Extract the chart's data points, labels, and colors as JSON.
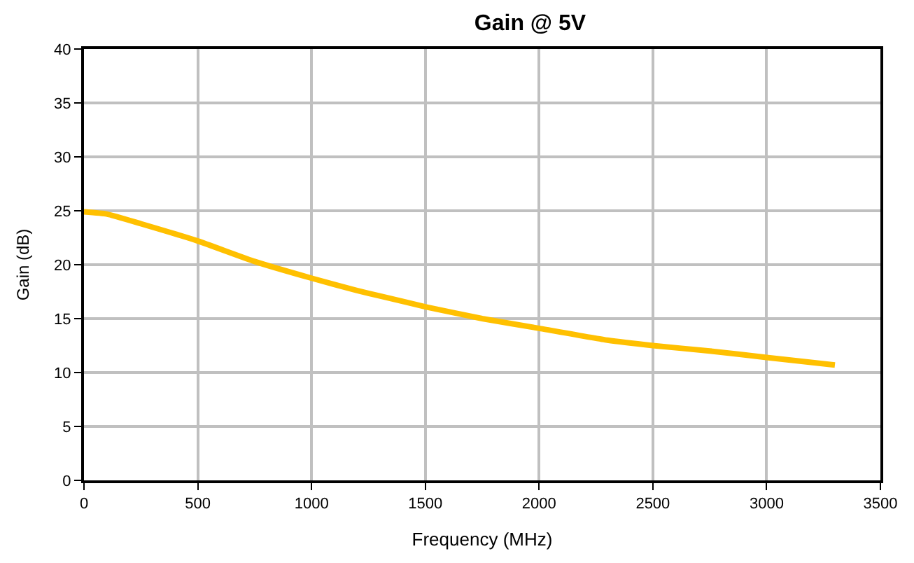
{
  "chart_data": {
    "type": "line",
    "title": "Gain @ 5V",
    "xlabel": "Frequency (MHz)",
    "ylabel": "Gain (dB)",
    "x": [
      0,
      100,
      250,
      500,
      750,
      1000,
      1200,
      1300,
      1500,
      1750,
      2000,
      2300,
      2500,
      2750,
      3000,
      3300
    ],
    "series": [
      {
        "color": "#ffc000",
        "values": [
          24.9,
          24.7,
          23.8,
          22.2,
          20.3,
          18.75,
          17.6,
          17.1,
          16.1,
          15.0,
          14.1,
          13.0,
          12.5,
          12.0,
          11.4,
          10.7
        ]
      }
    ],
    "xlim": [
      0,
      3500
    ],
    "xticks": [
      0,
      500,
      1000,
      1500,
      2000,
      2500,
      3000,
      3500
    ],
    "ylim": [
      0,
      40
    ],
    "yticks": [
      0,
      5,
      10,
      15,
      20,
      25,
      30,
      35,
      40
    ],
    "grid": true,
    "legend": false,
    "marker": "none",
    "line_style": "solid"
  }
}
